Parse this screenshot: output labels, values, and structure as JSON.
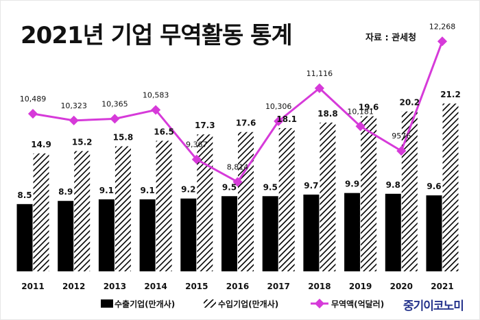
{
  "title": "2021년 기업 무역활동 통계",
  "source": "자료 : 관세청",
  "brand": "중기이코노미",
  "colors": {
    "export_bar": "#000000",
    "import_hatch": "#000000",
    "trade_line": "#d63ad9",
    "brand": "#25338c"
  },
  "chart_data": {
    "type": "bar",
    "title": "2021년 기업 무역활동 통계",
    "categories": [
      "2011",
      "2012",
      "2013",
      "2014",
      "2015",
      "2016",
      "2017",
      "2018",
      "2019",
      "2020",
      "2021"
    ],
    "series": [
      {
        "name": "수출기업(만개사)",
        "kind": "bar",
        "style": "solid",
        "values": [
          8.5,
          8.9,
          9.1,
          9.1,
          9.2,
          9.5,
          9.5,
          9.7,
          9.9,
          9.8,
          9.6
        ],
        "labels": [
          "8.5",
          "8.9",
          "9.1",
          "9.1",
          "9.2",
          "9.5",
          "9.5",
          "9.7",
          "9.9",
          "9.8",
          "9.6"
        ]
      },
      {
        "name": "수입기업(만개사)",
        "kind": "bar",
        "style": "hatched",
        "values": [
          14.9,
          15.2,
          15.8,
          16.5,
          17.3,
          17.6,
          18.1,
          18.8,
          19.6,
          20.2,
          21.2
        ],
        "labels": [
          "14.9",
          "15.2",
          "15.8",
          "16.5",
          "17.3",
          "17.6",
          "18.1",
          "18.8",
          "19.6",
          "20.2",
          "21.2"
        ]
      },
      {
        "name": "무역액(억달러)",
        "kind": "line",
        "marker": "diamond",
        "values": [
          10489,
          10323,
          10365,
          10583,
          9367,
          8814,
          10306,
          11116,
          10181,
          9576,
          12268
        ],
        "labels": [
          "10,489",
          "10,323",
          "10,365",
          "10,583",
          "9,367",
          "8,814",
          "10,306",
          "11,116",
          "10,181",
          "9576",
          "12,268"
        ]
      }
    ],
    "legend": [
      "수출기업(만개사)",
      "수입기업(만개사)",
      "무역액(억달러)"
    ],
    "legend_position": "bottom",
    "xlabel": "",
    "ylabel": "",
    "ylim_bars": [
      0,
      22
    ],
    "ylim_line": [
      8000,
      12600
    ],
    "grid": false
  }
}
